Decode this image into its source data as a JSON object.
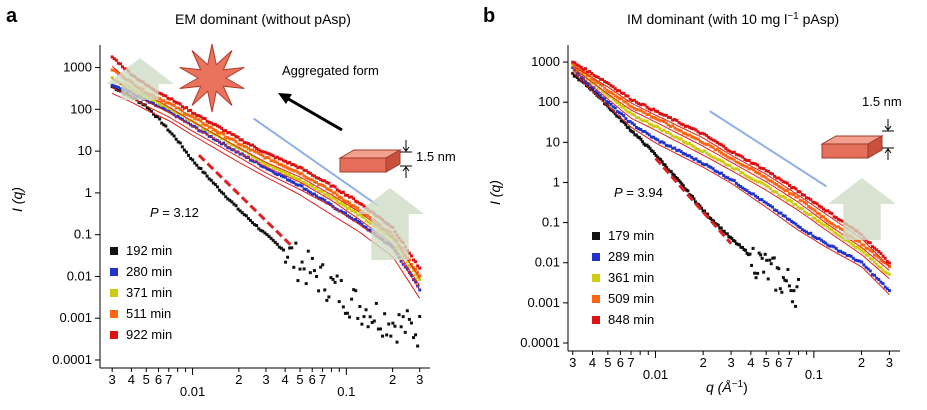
{
  "panels": [
    {
      "letter": "a",
      "title": "EM dominant (without pAsp)",
      "ylabel": "I (q)",
      "p_label": "P",
      "p_value": "= 3.12",
      "annot_aggregated": "Aggregated form",
      "annot_thickness": "1.5 nm",
      "ytick_labels": [
        "1000",
        "100",
        "10",
        "1",
        "0.1",
        "0.01",
        "0.001",
        "0.0001"
      ],
      "xtick_labels": [
        "3",
        "4",
        "5",
        "6",
        "7",
        "0.01",
        "2",
        "3",
        "4",
        "5",
        "6",
        "7",
        "0.1",
        "2",
        "3"
      ],
      "legend": [
        "192 min",
        "280 min",
        "371 min",
        "511 min",
        "922 min"
      ]
    },
    {
      "letter": "b",
      "title": "IM dominant (with 10 mg l",
      "title_sup": "−1",
      "title_tail": " pAsp)",
      "ylabel": "I (q)",
      "xlabel": "q (Å",
      "xlabel_sup": "−1",
      "xlabel_tail": ")",
      "p_label": "P",
      "p_value": "= 3.94",
      "annot_thickness": "1.5 nm",
      "ytick_labels": [
        "1000",
        "100",
        "10",
        "1",
        "0.1",
        "0.01",
        "0.001",
        "0.0001"
      ],
      "xtick_labels": [
        "3",
        "4",
        "5",
        "6",
        "7",
        "0.01",
        "2",
        "3",
        "4",
        "5",
        "6",
        "7",
        "0.1",
        "2",
        "3"
      ],
      "legend": [
        "179 min",
        "289 min",
        "361 min",
        "509 min",
        "848 min"
      ]
    }
  ],
  "chart_data": [
    {
      "type": "scatter",
      "title": "EM dominant (without pAsp)",
      "ylabel": "I (q)",
      "xscale": "log",
      "yscale": "log",
      "xlim": [
        0.0025,
        0.35
      ],
      "ylim": [
        0.0001,
        2000
      ],
      "colors": [
        "#111111",
        "#2233cc",
        "#cccc11",
        "#ff6611",
        "#dd1111"
      ],
      "series": [
        {
          "name": "192 min",
          "x": [
            0.003,
            0.004,
            0.005,
            0.006,
            0.008,
            0.01,
            0.015,
            0.02,
            0.03,
            0.05,
            0.08,
            0.12,
            0.2,
            0.3
          ],
          "y": [
            350,
            200,
            120,
            60,
            18,
            6,
            1.2,
            0.4,
            0.1,
            0.02,
            0.006,
            0.002,
            0.0008,
            0.0005
          ]
        },
        {
          "name": "280 min",
          "x": [
            0.003,
            0.004,
            0.005,
            0.007,
            0.01,
            0.02,
            0.03,
            0.05,
            0.08,
            0.12,
            0.2,
            0.3
          ],
          "y": [
            400,
            250,
            160,
            90,
            40,
            9,
            4,
            1.5,
            0.5,
            0.2,
            0.05,
            0.005
          ]
        },
        {
          "name": "371 min",
          "x": [
            0.003,
            0.004,
            0.005,
            0.007,
            0.01,
            0.02,
            0.03,
            0.05,
            0.08,
            0.12,
            0.2,
            0.3
          ],
          "y": [
            550,
            320,
            200,
            110,
            50,
            12,
            5,
            2,
            0.8,
            0.3,
            0.08,
            0.008
          ]
        },
        {
          "name": "511 min",
          "x": [
            0.003,
            0.004,
            0.005,
            0.007,
            0.01,
            0.02,
            0.03,
            0.05,
            0.08,
            0.12,
            0.2,
            0.3
          ],
          "y": [
            900,
            450,
            260,
            140,
            65,
            15,
            7,
            3,
            1.1,
            0.4,
            0.1,
            0.01
          ]
        },
        {
          "name": "922 min",
          "x": [
            0.003,
            0.004,
            0.005,
            0.007,
            0.01,
            0.02,
            0.03,
            0.05,
            0.08,
            0.12,
            0.2,
            0.3
          ],
          "y": [
            1800,
            700,
            380,
            190,
            85,
            20,
            9,
            4,
            1.5,
            0.6,
            0.15,
            0.015
          ]
        }
      ]
    },
    {
      "type": "scatter",
      "title": "IM dominant (with 10 mg l−1 pAsp)",
      "xlabel": "q (Å−1)",
      "ylabel": "I (q)",
      "xscale": "log",
      "yscale": "log",
      "xlim": [
        0.0028,
        0.35
      ],
      "ylim": [
        0.0001,
        1500
      ],
      "colors": [
        "#111111",
        "#2233cc",
        "#cccc11",
        "#ff6611",
        "#dd1111"
      ],
      "series": [
        {
          "name": "179 min",
          "x": [
            0.003,
            0.004,
            0.005,
            0.007,
            0.01,
            0.015,
            0.02,
            0.03,
            0.05,
            0.08
          ],
          "y": [
            500,
            200,
            80,
            20,
            5,
            0.8,
            0.2,
            0.04,
            0.007,
            0.002
          ]
        },
        {
          "name": "289 min",
          "x": [
            0.003,
            0.005,
            0.007,
            0.01,
            0.02,
            0.03,
            0.05,
            0.08,
            0.12,
            0.2,
            0.3
          ],
          "y": [
            700,
            100,
            30,
            12,
            3,
            1.2,
            0.3,
            0.08,
            0.03,
            0.01,
            0.002
          ]
        },
        {
          "name": "361 min",
          "x": [
            0.003,
            0.005,
            0.007,
            0.01,
            0.02,
            0.03,
            0.05,
            0.08,
            0.12,
            0.2,
            0.3
          ],
          "y": [
            800,
            150,
            50,
            25,
            6,
            2.5,
            0.8,
            0.25,
            0.08,
            0.02,
            0.005
          ]
        },
        {
          "name": "509 min",
          "x": [
            0.003,
            0.005,
            0.007,
            0.01,
            0.02,
            0.03,
            0.05,
            0.08,
            0.12,
            0.2,
            0.3
          ],
          "y": [
            900,
            200,
            80,
            40,
            10,
            4,
            1.3,
            0.4,
            0.12,
            0.03,
            0.008
          ]
        },
        {
          "name": "848 min",
          "x": [
            0.003,
            0.005,
            0.007,
            0.01,
            0.02,
            0.03,
            0.05,
            0.08,
            0.12,
            0.2,
            0.3
          ],
          "y": [
            1000,
            300,
            120,
            60,
            16,
            6,
            2,
            0.6,
            0.2,
            0.05,
            0.01
          ]
        }
      ]
    }
  ]
}
